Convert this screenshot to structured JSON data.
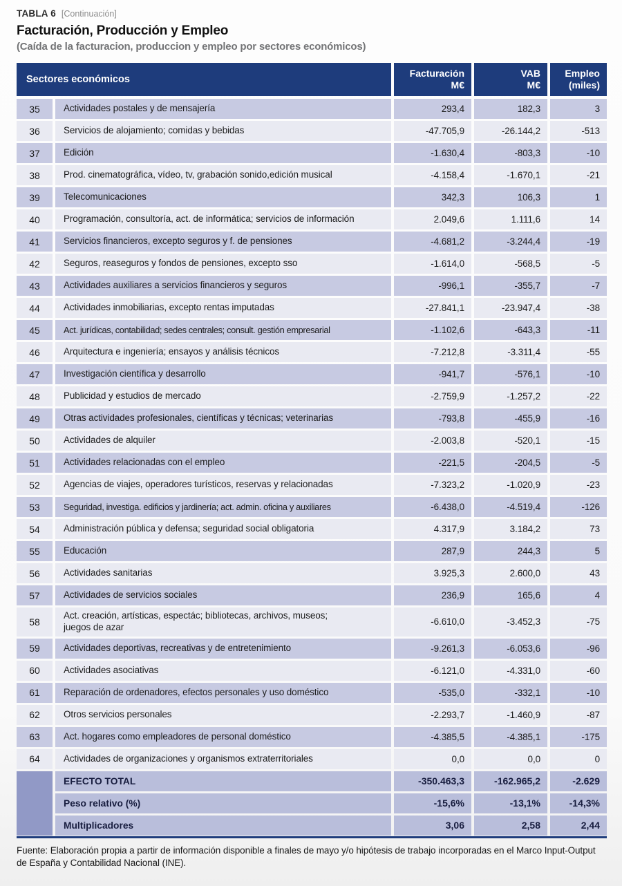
{
  "page": {
    "kicker": "TABLA 6",
    "continuation": "[Continuación]",
    "title": "Facturación, Producción y Empleo",
    "subtitle": "(Caída de la facturacion, produccion y empleo por sectores económicos)",
    "source": "Fuente: Elaboración propia a partir de información disponible a finales de mayo y/o hipótesis de trabajo incorporadas en el Marco Input-Output de España y Contabilidad Nacional (INE)."
  },
  "colors": {
    "header_navy": "#1e3c7c",
    "row_dark": "#c7cae2",
    "row_light": "#e9eaf2",
    "summary_cell": "#b9bedb",
    "summary_left_block": "#9199c6"
  },
  "table": {
    "columns": {
      "sectors": "Sectores económicos",
      "facturacion": "Facturación\nM€",
      "vab": "VAB\nM€",
      "empleo": "Empleo\n(miles)"
    },
    "rows": [
      {
        "num": "35",
        "label": "Actividades postales y de mensajería",
        "facturacion": "293,4",
        "vab": "182,3",
        "empleo": "3"
      },
      {
        "num": "36",
        "label": "Servicios de alojamiento; comidas y bebidas",
        "facturacion": "-47.705,9",
        "vab": "-26.144,2",
        "empleo": "-513"
      },
      {
        "num": "37",
        "label": "Edición",
        "facturacion": "-1.630,4",
        "vab": "-803,3",
        "empleo": "-10"
      },
      {
        "num": "38",
        "label": "Prod. cinematográfica, vídeo, tv, grabación sonido,edición musical",
        "facturacion": "-4.158,4",
        "vab": "-1.670,1",
        "empleo": "-21"
      },
      {
        "num": "39",
        "label": "Telecomunicaciones",
        "facturacion": "342,3",
        "vab": "106,3",
        "empleo": "1"
      },
      {
        "num": "40",
        "label": "Programación, consultoría, act. de informática; servicios de información",
        "facturacion": "2.049,6",
        "vab": "1.111,6",
        "empleo": "14"
      },
      {
        "num": "41",
        "label": "Servicios financieros, excepto seguros y f. de pensiones",
        "facturacion": "-4.681,2",
        "vab": "-3.244,4",
        "empleo": "-19"
      },
      {
        "num": "42",
        "label": "Seguros, reaseguros y fondos de pensiones, excepto sso",
        "facturacion": "-1.614,0",
        "vab": "-568,5",
        "empleo": "-5"
      },
      {
        "num": "43",
        "label": "Actividades auxiliares a servicios financieros y seguros",
        "facturacion": "-996,1",
        "vab": "-355,7",
        "empleo": "-7"
      },
      {
        "num": "44",
        "label": "Actividades inmobiliarias, excepto rentas imputadas",
        "facturacion": "-27.841,1",
        "vab": "-23.947,4",
        "empleo": "-38"
      },
      {
        "num": "45",
        "label": "Act. jurídicas, contabilidad; sedes centrales; consult. gestión empresarial",
        "facturacion": "-1.102,6",
        "vab": "-643,3",
        "empleo": "-11"
      },
      {
        "num": "46",
        "label": "Arquitectura e ingeniería; ensayos y análisis técnicos",
        "facturacion": "-7.212,8",
        "vab": "-3.311,4",
        "empleo": "-55"
      },
      {
        "num": "47",
        "label": "Investigación científica y desarrollo",
        "facturacion": "-941,7",
        "vab": "-576,1",
        "empleo": "-10"
      },
      {
        "num": "48",
        "label": "Publicidad y estudios de mercado",
        "facturacion": "-2.759,9",
        "vab": "-1.257,2",
        "empleo": "-22"
      },
      {
        "num": "49",
        "label": "Otras actividades profesionales, científicas y técnicas; veterinarias",
        "facturacion": "-793,8",
        "vab": "-455,9",
        "empleo": "-16"
      },
      {
        "num": "50",
        "label": "Actividades de alquiler",
        "facturacion": "-2.003,8",
        "vab": "-520,1",
        "empleo": "-15"
      },
      {
        "num": "51",
        "label": "Actividades relacionadas con el empleo",
        "facturacion": "-221,5",
        "vab": "-204,5",
        "empleo": "-5"
      },
      {
        "num": "52",
        "label": "Agencias de viajes, operadores turísticos, reservas y relacionadas",
        "facturacion": "-7.323,2",
        "vab": "-1.020,9",
        "empleo": "-23"
      },
      {
        "num": "53",
        "label": "Seguridad, investiga. edificios y jardinería; act. admin. oficina y auxiliares",
        "facturacion": "-6.438,0",
        "vab": "-4.519,4",
        "empleo": "-126"
      },
      {
        "num": "54",
        "label": "Administración pública y defensa; seguridad social obligatoria",
        "facturacion": "4.317,9",
        "vab": "3.184,2",
        "empleo": "73"
      },
      {
        "num": "55",
        "label": "Educación",
        "facturacion": "287,9",
        "vab": "244,3",
        "empleo": "5"
      },
      {
        "num": "56",
        "label": "Actividades sanitarias",
        "facturacion": "3.925,3",
        "vab": "2.600,0",
        "empleo": "43"
      },
      {
        "num": "57",
        "label": "Actividades de servicios sociales",
        "facturacion": "236,9",
        "vab": "165,6",
        "empleo": "4"
      },
      {
        "num": "58",
        "label": "Act. creación, artísticas, espectác; bibliotecas, archivos, museos;",
        "label_line2": "juegos de azar",
        "facturacion": "-6.610,0",
        "vab": "-3.452,3",
        "empleo": "-75"
      },
      {
        "num": "59",
        "label": "Actividades deportivas, recreativas y de entretenimiento",
        "facturacion": "-9.261,3",
        "vab": "-6.053,6",
        "empleo": "-96"
      },
      {
        "num": "60",
        "label": "Actividades asociativas",
        "facturacion": "-6.121,0",
        "vab": "-4.331,0",
        "empleo": "-60"
      },
      {
        "num": "61",
        "label": "Reparación de ordenadores, efectos personales y uso doméstico",
        "facturacion": "-535,0",
        "vab": "-332,1",
        "empleo": "-10"
      },
      {
        "num": "62",
        "label": "Otros servicios personales",
        "facturacion": "-2.293,7",
        "vab": "-1.460,9",
        "empleo": "-87"
      },
      {
        "num": "63",
        "label": "Act. hogares como empleadores de personal doméstico",
        "facturacion": "-4.385,5",
        "vab": "-4.385,1",
        "empleo": "-175"
      },
      {
        "num": "64",
        "label": "Actividades de organizaciones y organismos extraterritoriales",
        "facturacion": "0,0",
        "vab": "0,0",
        "empleo": "0"
      }
    ],
    "summary_rows": [
      {
        "label": "EFECTO TOTAL",
        "facturacion": "-350.463,3",
        "vab": "-162.965,2",
        "empleo": "-2.629"
      },
      {
        "label": "Peso relativo (%)",
        "facturacion": "-15,6%",
        "vab": "-13,1%",
        "empleo": "-14,3%"
      },
      {
        "label": "Multiplicadores",
        "facturacion": "3,06",
        "vab": "2,58",
        "empleo": "2,44"
      }
    ]
  }
}
